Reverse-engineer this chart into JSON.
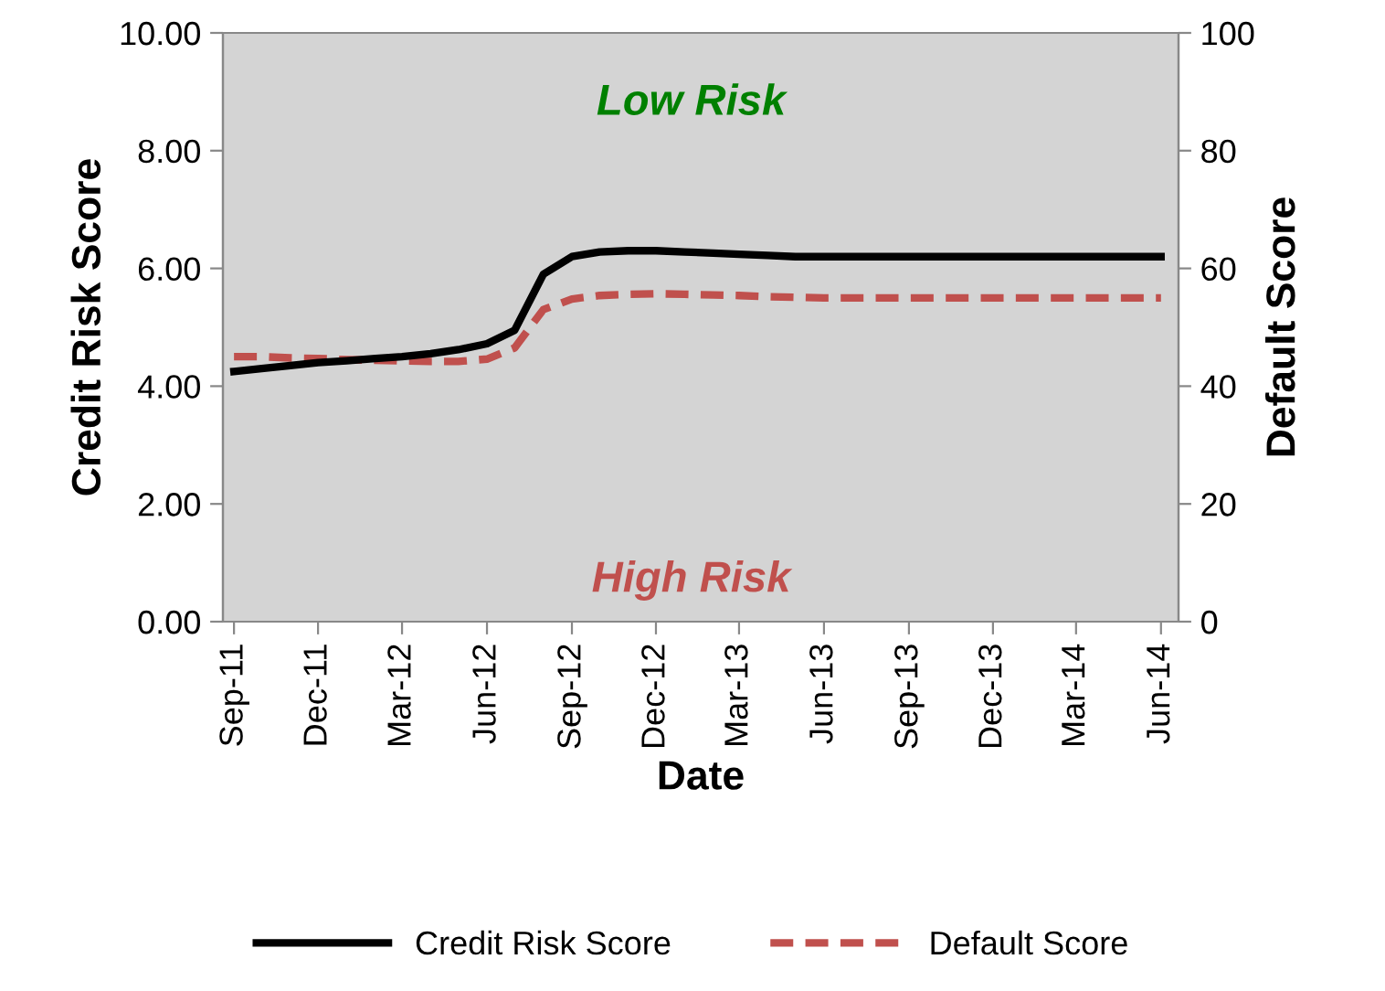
{
  "chart_data": {
    "type": "line",
    "xlabel": "Date",
    "ylabel": "Credit Risk Score",
    "y2label": "Default Score",
    "x": [
      "2011-09",
      "2011-10",
      "2011-11",
      "2011-12",
      "2012-01",
      "2012-02",
      "2012-03",
      "2012-04",
      "2012-05",
      "2012-06",
      "2012-07",
      "2012-08",
      "2012-09",
      "2012-10",
      "2012-11",
      "2012-12",
      "2013-01",
      "2013-02",
      "2013-03",
      "2013-04",
      "2013-05",
      "2013-06",
      "2013-07",
      "2013-08",
      "2013-09",
      "2013-10",
      "2013-11",
      "2013-12",
      "2014-01",
      "2014-02",
      "2014-03",
      "2014-04",
      "2014-05",
      "2014-06"
    ],
    "series": [
      {
        "name": "Credit Risk Score",
        "color": "#000000",
        "line_style": "solid",
        "values": [
          4.25,
          4.3,
          4.35,
          4.4,
          4.43,
          4.47,
          4.5,
          4.55,
          4.62,
          4.72,
          4.95,
          5.9,
          6.2,
          6.28,
          6.3,
          6.3,
          6.28,
          6.26,
          6.24,
          6.22,
          6.2,
          6.2,
          6.2,
          6.2,
          6.2,
          6.2,
          6.2,
          6.2,
          6.2,
          6.2,
          6.2,
          6.2,
          6.2,
          6.2
        ]
      },
      {
        "name": "Default Score",
        "color": "#c0504d",
        "line_style": "dashed",
        "axis": "y2",
        "values": [
          45,
          45,
          44.8,
          44.7,
          44.5,
          44.4,
          44.3,
          44.2,
          44.2,
          44.6,
          46.5,
          53,
          54.8,
          55.4,
          55.6,
          55.7,
          55.6,
          55.5,
          55.4,
          55.2,
          55.1,
          55,
          55,
          55,
          55,
          55,
          55,
          55,
          55,
          55,
          55,
          55,
          55,
          55
        ]
      }
    ],
    "xlim": [
      "2011-08-20",
      "2014-06-20"
    ],
    "xticks": [
      {
        "value": "2011-09-01",
        "label": "Sep-11"
      },
      {
        "value": "2011-12-01",
        "label": "Dec-11"
      },
      {
        "value": "2012-03-01",
        "label": "Mar-12"
      },
      {
        "value": "2012-06-01",
        "label": "Jun-12"
      },
      {
        "value": "2012-09-01",
        "label": "Sep-12"
      },
      {
        "value": "2012-12-01",
        "label": "Dec-12"
      },
      {
        "value": "2013-03-01",
        "label": "Mar-13"
      },
      {
        "value": "2013-06-01",
        "label": "Jun-13"
      },
      {
        "value": "2013-09-01",
        "label": "Sep-13"
      },
      {
        "value": "2013-12-01",
        "label": "Dec-13"
      },
      {
        "value": "2014-03-01",
        "label": "Mar-14"
      },
      {
        "value": "2014-06-01",
        "label": "Jun-14"
      }
    ],
    "ylim": [
      0,
      10
    ],
    "yticks": [
      {
        "value": 0,
        "label": "0.00"
      },
      {
        "value": 2,
        "label": "2.00"
      },
      {
        "value": 4,
        "label": "4.00"
      },
      {
        "value": 6,
        "label": "6.00"
      },
      {
        "value": 8,
        "label": "8.00"
      },
      {
        "value": 10,
        "label": "10.00"
      }
    ],
    "y2lim": [
      0,
      100
    ],
    "y2ticks": [
      0,
      20,
      40,
      60,
      80,
      100
    ],
    "annotations": [
      "Low Risk",
      "High Risk"
    ],
    "grid": false,
    "legend": "bottom",
    "marker": "none"
  }
}
